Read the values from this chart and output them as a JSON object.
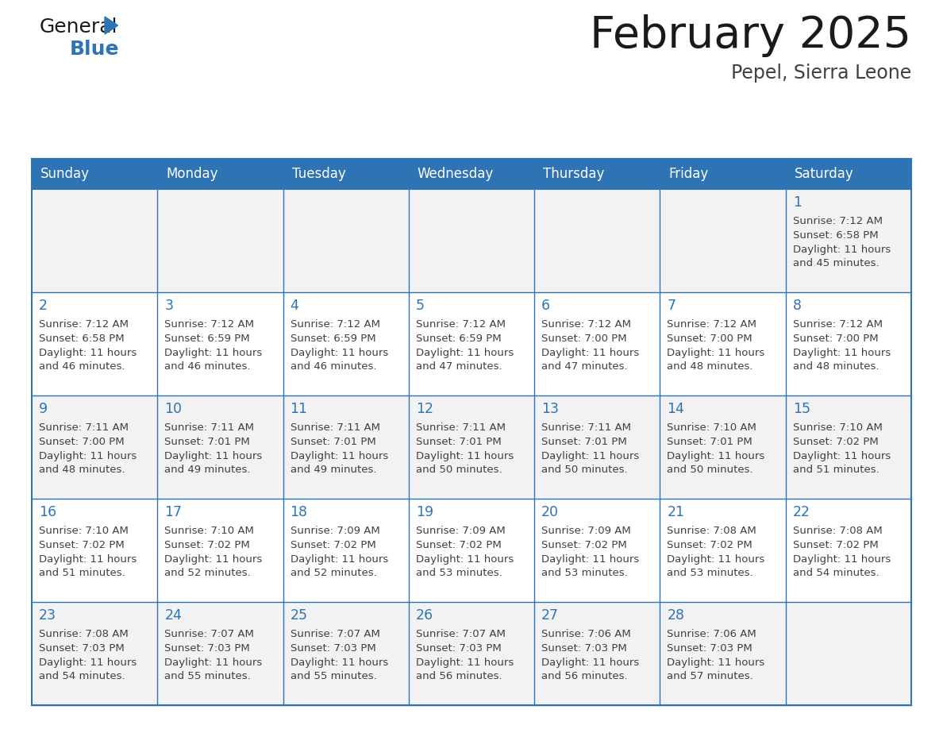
{
  "title": "February 2025",
  "subtitle": "Pepel, Sierra Leone",
  "days_of_week": [
    "Sunday",
    "Monday",
    "Tuesday",
    "Wednesday",
    "Thursday",
    "Friday",
    "Saturday"
  ],
  "header_bg": "#2E74B5",
  "header_text_color": "#FFFFFF",
  "cell_bg": "#FFFFFF",
  "cell_alt_bg": "#F2F2F2",
  "border_color": "#2E74B5",
  "title_color": "#1A1A1A",
  "subtitle_color": "#404040",
  "day_number_color": "#2E74B5",
  "cell_text_color": "#404040",
  "logo_color_general": "#1A1A1A",
  "logo_color_blue": "#2E74B5",
  "logo_triangle_color": "#2E74B5",
  "calendar_data": [
    [
      null,
      null,
      null,
      null,
      null,
      null,
      {
        "day": 1,
        "sunrise": "7:12 AM",
        "sunset": "6:58 PM",
        "daylight": "11 hours and 45 minutes."
      }
    ],
    [
      {
        "day": 2,
        "sunrise": "7:12 AM",
        "sunset": "6:58 PM",
        "daylight": "11 hours and 46 minutes."
      },
      {
        "day": 3,
        "sunrise": "7:12 AM",
        "sunset": "6:59 PM",
        "daylight": "11 hours and 46 minutes."
      },
      {
        "day": 4,
        "sunrise": "7:12 AM",
        "sunset": "6:59 PM",
        "daylight": "11 hours and 46 minutes."
      },
      {
        "day": 5,
        "sunrise": "7:12 AM",
        "sunset": "6:59 PM",
        "daylight": "11 hours and 47 minutes."
      },
      {
        "day": 6,
        "sunrise": "7:12 AM",
        "sunset": "7:00 PM",
        "daylight": "11 hours and 47 minutes."
      },
      {
        "day": 7,
        "sunrise": "7:12 AM",
        "sunset": "7:00 PM",
        "daylight": "11 hours and 48 minutes."
      },
      {
        "day": 8,
        "sunrise": "7:12 AM",
        "sunset": "7:00 PM",
        "daylight": "11 hours and 48 minutes."
      }
    ],
    [
      {
        "day": 9,
        "sunrise": "7:11 AM",
        "sunset": "7:00 PM",
        "daylight": "11 hours and 48 minutes."
      },
      {
        "day": 10,
        "sunrise": "7:11 AM",
        "sunset": "7:01 PM",
        "daylight": "11 hours and 49 minutes."
      },
      {
        "day": 11,
        "sunrise": "7:11 AM",
        "sunset": "7:01 PM",
        "daylight": "11 hours and 49 minutes."
      },
      {
        "day": 12,
        "sunrise": "7:11 AM",
        "sunset": "7:01 PM",
        "daylight": "11 hours and 50 minutes."
      },
      {
        "day": 13,
        "sunrise": "7:11 AM",
        "sunset": "7:01 PM",
        "daylight": "11 hours and 50 minutes."
      },
      {
        "day": 14,
        "sunrise": "7:10 AM",
        "sunset": "7:01 PM",
        "daylight": "11 hours and 50 minutes."
      },
      {
        "day": 15,
        "sunrise": "7:10 AM",
        "sunset": "7:02 PM",
        "daylight": "11 hours and 51 minutes."
      }
    ],
    [
      {
        "day": 16,
        "sunrise": "7:10 AM",
        "sunset": "7:02 PM",
        "daylight": "11 hours and 51 minutes."
      },
      {
        "day": 17,
        "sunrise": "7:10 AM",
        "sunset": "7:02 PM",
        "daylight": "11 hours and 52 minutes."
      },
      {
        "day": 18,
        "sunrise": "7:09 AM",
        "sunset": "7:02 PM",
        "daylight": "11 hours and 52 minutes."
      },
      {
        "day": 19,
        "sunrise": "7:09 AM",
        "sunset": "7:02 PM",
        "daylight": "11 hours and 53 minutes."
      },
      {
        "day": 20,
        "sunrise": "7:09 AM",
        "sunset": "7:02 PM",
        "daylight": "11 hours and 53 minutes."
      },
      {
        "day": 21,
        "sunrise": "7:08 AM",
        "sunset": "7:02 PM",
        "daylight": "11 hours and 53 minutes."
      },
      {
        "day": 22,
        "sunrise": "7:08 AM",
        "sunset": "7:02 PM",
        "daylight": "11 hours and 54 minutes."
      }
    ],
    [
      {
        "day": 23,
        "sunrise": "7:08 AM",
        "sunset": "7:03 PM",
        "daylight": "11 hours and 54 minutes."
      },
      {
        "day": 24,
        "sunrise": "7:07 AM",
        "sunset": "7:03 PM",
        "daylight": "11 hours and 55 minutes."
      },
      {
        "day": 25,
        "sunrise": "7:07 AM",
        "sunset": "7:03 PM",
        "daylight": "11 hours and 55 minutes."
      },
      {
        "day": 26,
        "sunrise": "7:07 AM",
        "sunset": "7:03 PM",
        "daylight": "11 hours and 56 minutes."
      },
      {
        "day": 27,
        "sunrise": "7:06 AM",
        "sunset": "7:03 PM",
        "daylight": "11 hours and 56 minutes."
      },
      {
        "day": 28,
        "sunrise": "7:06 AM",
        "sunset": "7:03 PM",
        "daylight": "11 hours and 57 minutes."
      },
      null
    ]
  ]
}
